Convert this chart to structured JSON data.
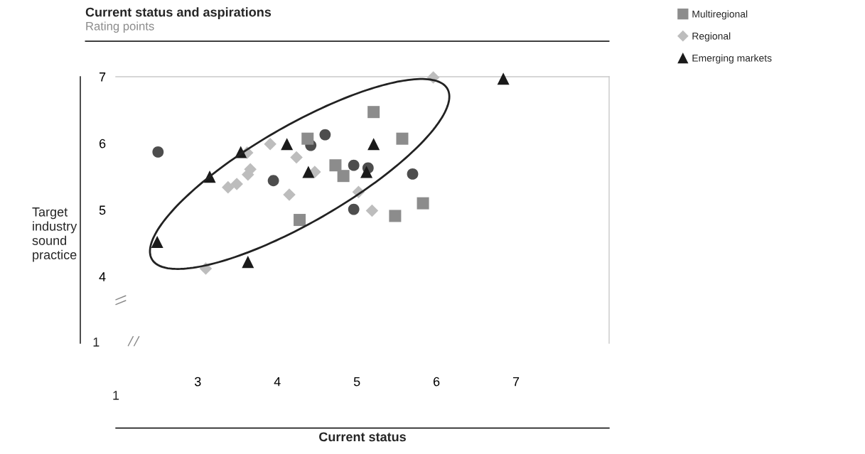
{
  "chart_data": {
    "type": "scatter",
    "title": "Current status and aspirations",
    "subtitle": "Rating points",
    "xlabel": "Current status",
    "ylabel": "Target\nindustry\nsound\npractice",
    "xlim": [
      1.97,
      8.17
    ],
    "xticks": [
      3,
      4,
      5,
      6,
      7
    ],
    "ylim": [
      3,
      7
    ],
    "yticks": [
      4,
      5,
      6,
      7
    ],
    "annotations": [
      "1",
      "1"
    ],
    "grid": false,
    "legend": "top right",
    "series": [
      {
        "color": "#4d4d4d",
        "marker": "circle",
        "x": [
          2.5,
          3.95,
          4.6,
          4.42,
          4.96,
          5.14,
          5.7,
          4.96
        ],
        "values": [
          5.87,
          5.44,
          6.13,
          5.97,
          5.67,
          5.63,
          5.54,
          5.01
        ]
      },
      {
        "name": "Multiregional",
        "color": "#8c8c8c",
        "marker": "square",
        "x": [
          5.21,
          4.38,
          5.57,
          4.73,
          4.83,
          5.83,
          5.48,
          4.28
        ],
        "values": [
          6.47,
          6.07,
          6.07,
          5.67,
          5.51,
          5.1,
          4.91,
          4.85
        ]
      },
      {
        "name": "Regional",
        "color": "#bdbdbd",
        "marker": "diamond",
        "x": [
          3.91,
          3.62,
          3.66,
          3.63,
          3.49,
          3.38,
          3.1,
          4.24,
          4.47,
          4.15,
          5.02,
          5.19,
          5.96
        ],
        "values": [
          5.99,
          5.86,
          5.61,
          5.53,
          5.39,
          5.34,
          4.12,
          5.79,
          5.57,
          5.23,
          5.27,
          4.99,
          6.99
        ]
      },
      {
        "name": "Emerging markets",
        "color": "#1a1a1a",
        "marker": "triangle",
        "x": [
          2.49,
          3.15,
          3.54,
          3.63,
          4.12,
          4.39,
          5.21,
          5.12,
          6.84
        ],
        "values": [
          4.52,
          5.5,
          5.87,
          4.22,
          5.99,
          5.57,
          5.99,
          5.57,
          6.97
        ]
      }
    ]
  }
}
